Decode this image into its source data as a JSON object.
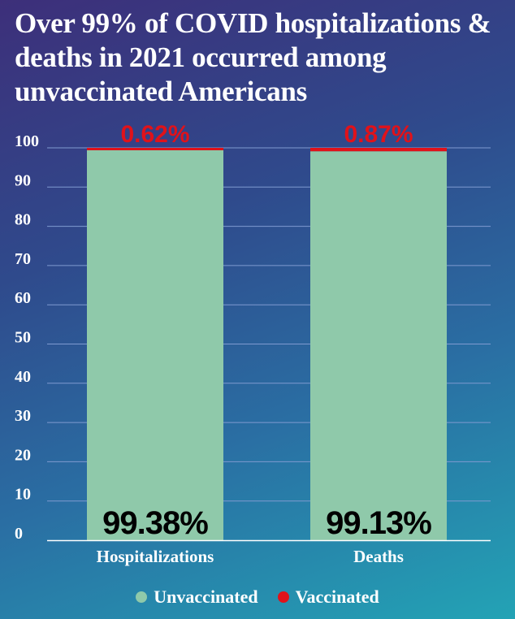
{
  "title": "Over 99% of COVID hospitalizations & deaths in 2021 occurred among unvaccinated Americans",
  "colors": {
    "unvaccinated": "#8fc9aa",
    "vaccinated": "#e0121a",
    "grid": "#7f9ad0",
    "text": "#ffffff",
    "label_dark": "#000000"
  },
  "chart_data": {
    "type": "bar",
    "stacked": true,
    "categories": [
      "Hospitalizations",
      "Deaths"
    ],
    "series": [
      {
        "name": "Unvaccinated",
        "values": [
          99.38,
          99.13
        ],
        "labels": [
          "99.38%",
          "99.13%"
        ],
        "color": "#8fc9aa"
      },
      {
        "name": "Vaccinated",
        "values": [
          0.62,
          0.87
        ],
        "labels": [
          "0.62%",
          "0.87%"
        ],
        "color": "#e0121a"
      }
    ],
    "ylim": [
      0,
      100
    ],
    "yticks": [
      0,
      10,
      20,
      30,
      40,
      50,
      60,
      70,
      80,
      90,
      100
    ],
    "grid": true,
    "legend": "bottom"
  },
  "legend": {
    "items": [
      {
        "label": "Unvaccinated",
        "color": "#8fc9aa"
      },
      {
        "label": "Vaccinated",
        "color": "#e0121a"
      }
    ]
  }
}
